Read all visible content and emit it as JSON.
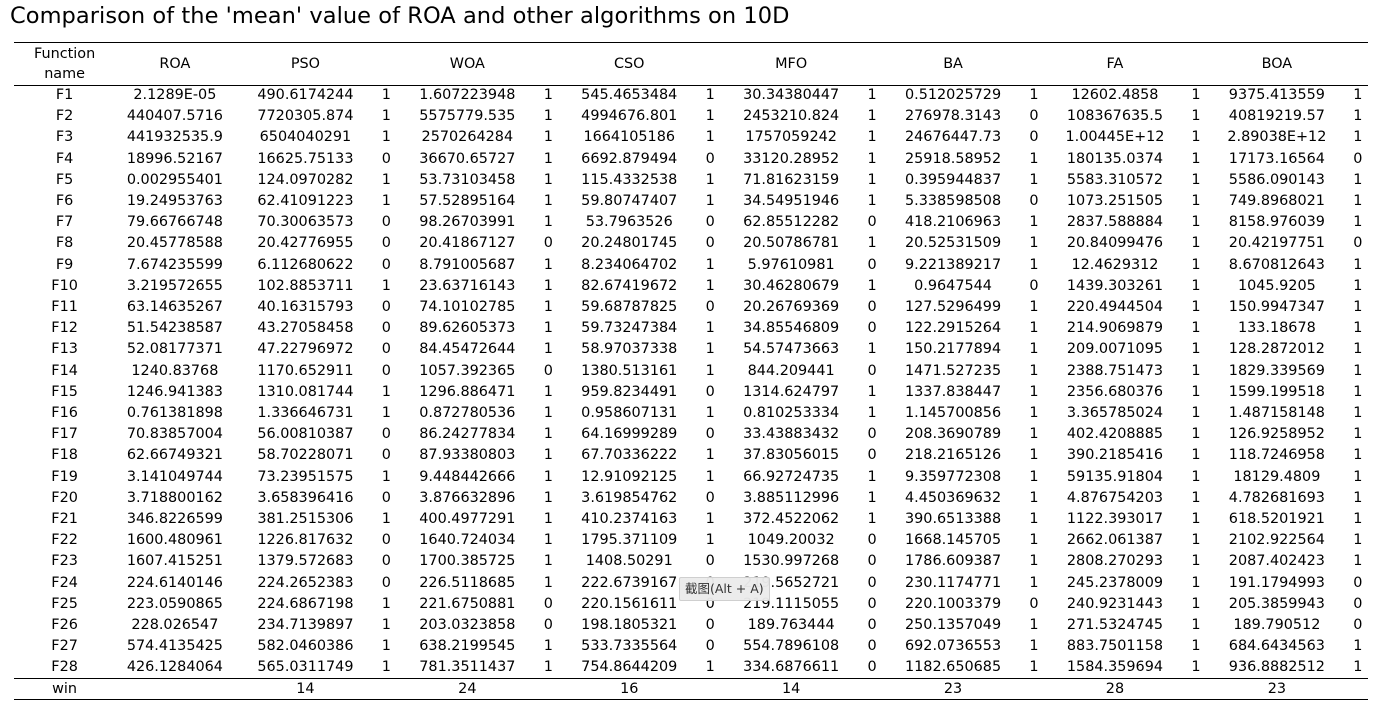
{
  "title": "Comparison of the 'mean' value of ROA and other algorithms on 10D",
  "table": {
    "headers": [
      "Function name",
      "ROA",
      "PSO",
      "",
      "WOA",
      "",
      "CSO",
      "",
      "MFO",
      "",
      "BA",
      "",
      "FA",
      "",
      "BOA",
      ""
    ],
    "rows": [
      [
        "F1",
        "2.1289E-05",
        "490.6174244",
        "1",
        "1.607223948",
        "1",
        "545.4653484",
        "1",
        "30.34380447",
        "1",
        "0.512025729",
        "1",
        "12602.4858",
        "1",
        "9375.413559",
        "1"
      ],
      [
        "F2",
        "440407.5716",
        "7720305.874",
        "1",
        "5575779.535",
        "1",
        "4994676.801",
        "1",
        "2453210.824",
        "1",
        "276978.3143",
        "0",
        "108367635.5",
        "1",
        "40819219.57",
        "1"
      ],
      [
        "F3",
        "441932535.9",
        "6504040291",
        "1",
        "2570264284",
        "1",
        "1664105186",
        "1",
        "1757059242",
        "1",
        "24676447.73",
        "0",
        "1.00445E+12",
        "1",
        "2.89038E+12",
        "1"
      ],
      [
        "F4",
        "18996.52167",
        "16625.75133",
        "0",
        "36670.65727",
        "1",
        "6692.879494",
        "0",
        "33120.28952",
        "1",
        "25918.58952",
        "1",
        "180135.0374",
        "1",
        "17173.16564",
        "0"
      ],
      [
        "F5",
        "0.002955401",
        "124.0970282",
        "1",
        "53.73103458",
        "1",
        "115.4332538",
        "1",
        "71.81623159",
        "1",
        "0.395944837",
        "1",
        "5583.310572",
        "1",
        "5586.090143",
        "1"
      ],
      [
        "F6",
        "19.24953763",
        "62.41091223",
        "1",
        "57.52895164",
        "1",
        "59.80747407",
        "1",
        "34.54951946",
        "1",
        "5.338598508",
        "0",
        "1073.251505",
        "1",
        "749.8968021",
        "1"
      ],
      [
        "F7",
        "79.66766748",
        "70.30063573",
        "0",
        "98.26703991",
        "1",
        "53.7963526",
        "0",
        "62.85512282",
        "0",
        "418.2106963",
        "1",
        "2837.588884",
        "1",
        "8158.976039",
        "1"
      ],
      [
        "F8",
        "20.45778588",
        "20.42776955",
        "0",
        "20.41867127",
        "0",
        "20.24801745",
        "0",
        "20.50786781",
        "1",
        "20.52531509",
        "1",
        "20.84099476",
        "1",
        "20.42197751",
        "0"
      ],
      [
        "F9",
        "7.674235599",
        "6.112680622",
        "0",
        "8.791005687",
        "1",
        "8.234064702",
        "1",
        "5.97610981",
        "0",
        "9.221389217",
        "1",
        "12.4629312",
        "1",
        "8.670812643",
        "1"
      ],
      [
        "F10",
        "3.219572655",
        "102.8853711",
        "1",
        "23.63716143",
        "1",
        "82.67419672",
        "1",
        "30.46280679",
        "1",
        "0.9647544",
        "0",
        "1439.303261",
        "1",
        "1045.9205",
        "1"
      ],
      [
        "F11",
        "63.14635267",
        "40.16315793",
        "0",
        "74.10102785",
        "1",
        "59.68787825",
        "0",
        "20.26769369",
        "0",
        "127.5296499",
        "1",
        "220.4944504",
        "1",
        "150.9947347",
        "1"
      ],
      [
        "F12",
        "51.54238587",
        "43.27058458",
        "0",
        "89.62605373",
        "1",
        "59.73247384",
        "1",
        "34.85546809",
        "0",
        "122.2915264",
        "1",
        "214.9069879",
        "1",
        "133.18678",
        "1"
      ],
      [
        "F13",
        "52.08177371",
        "47.22796972",
        "0",
        "84.45472644",
        "1",
        "58.97037338",
        "1",
        "54.57473663",
        "1",
        "150.2177894",
        "1",
        "209.0071095",
        "1",
        "128.2872012",
        "1"
      ],
      [
        "F14",
        "1240.83768",
        "1170.652911",
        "0",
        "1057.392365",
        "0",
        "1380.513161",
        "1",
        "844.209441",
        "0",
        "1471.527235",
        "1",
        "2388.751473",
        "1",
        "1829.339569",
        "1"
      ],
      [
        "F15",
        "1246.941383",
        "1310.081744",
        "1",
        "1296.886471",
        "1",
        "959.8234491",
        "0",
        "1314.624797",
        "1",
        "1337.838447",
        "1",
        "2356.680376",
        "1",
        "1599.199518",
        "1"
      ],
      [
        "F16",
        "0.761381898",
        "1.336646731",
        "1",
        "0.872780536",
        "1",
        "0.958607131",
        "1",
        "0.810253334",
        "1",
        "1.145700856",
        "1",
        "3.365785024",
        "1",
        "1.487158148",
        "1"
      ],
      [
        "F17",
        "70.83857004",
        "56.00810387",
        "0",
        "86.24277834",
        "1",
        "64.16999289",
        "0",
        "33.43883432",
        "0",
        "208.3690789",
        "1",
        "402.4208885",
        "1",
        "126.9258952",
        "1"
      ],
      [
        "F18",
        "62.66749321",
        "58.70228071",
        "0",
        "87.93380803",
        "1",
        "67.70336222",
        "1",
        "37.83056015",
        "0",
        "218.2165126",
        "1",
        "390.2185416",
        "1",
        "118.7246958",
        "1"
      ],
      [
        "F19",
        "3.141049744",
        "73.23951575",
        "1",
        "9.448442666",
        "1",
        "12.91092125",
        "1",
        "66.92724735",
        "1",
        "9.359772308",
        "1",
        "59135.91804",
        "1",
        "18129.4809",
        "1"
      ],
      [
        "F20",
        "3.718800162",
        "3.658396416",
        "0",
        "3.876632896",
        "1",
        "3.619854762",
        "0",
        "3.885112996",
        "1",
        "4.450369632",
        "1",
        "4.876754203",
        "1",
        "4.782681693",
        "1"
      ],
      [
        "F21",
        "346.8226599",
        "381.2515306",
        "1",
        "400.4977291",
        "1",
        "410.2374163",
        "1",
        "372.4522062",
        "1",
        "390.6513388",
        "1",
        "1122.393017",
        "1",
        "618.5201921",
        "1"
      ],
      [
        "F22",
        "1600.480961",
        "1226.817632",
        "0",
        "1640.724034",
        "1",
        "1795.371109",
        "1",
        "1049.20032",
        "0",
        "1668.145705",
        "1",
        "2662.061387",
        "1",
        "2102.922564",
        "1"
      ],
      [
        "F23",
        "1607.415251",
        "1379.572683",
        "0",
        "1700.385725",
        "1",
        "1408.50291",
        "0",
        "1530.997268",
        "0",
        "1786.609387",
        "1",
        "2808.270293",
        "1",
        "2087.402423",
        "1"
      ],
      [
        "F24",
        "224.6140146",
        "224.2652383",
        "0",
        "226.5118685",
        "1",
        "222.6739167",
        "0",
        "219.5652721",
        "0",
        "230.1174771",
        "1",
        "245.2378009",
        "1",
        "191.1794993",
        "0"
      ],
      [
        "F25",
        "223.0590865",
        "224.6867198",
        "1",
        "221.6750881",
        "0",
        "220.1561611",
        "0",
        "219.1115055",
        "0",
        "220.1003379",
        "0",
        "240.9231443",
        "1",
        "205.3859943",
        "0"
      ],
      [
        "F26",
        "228.026547",
        "234.7139897",
        "1",
        "203.0323858",
        "0",
        "198.1805321",
        "0",
        "189.763444",
        "0",
        "250.1357049",
        "1",
        "271.5324745",
        "1",
        "189.790512",
        "0"
      ],
      [
        "F27",
        "574.4135425",
        "582.0460386",
        "1",
        "638.2199545",
        "1",
        "533.7335564",
        "0",
        "554.7896108",
        "0",
        "692.0736553",
        "1",
        "883.7501158",
        "1",
        "684.6434563",
        "1"
      ],
      [
        "F28",
        "426.1284064",
        "565.0311749",
        "1",
        "781.3511437",
        "1",
        "754.8644209",
        "1",
        "334.6876611",
        "0",
        "1182.650685",
        "1",
        "1584.359694",
        "1",
        "936.8882512",
        "1"
      ]
    ],
    "footer": [
      "win",
      "",
      "14",
      "",
      "24",
      "",
      "16",
      "",
      "14",
      "",
      "23",
      "",
      "28",
      "",
      "23",
      ""
    ]
  },
  "tooltip": "截图(Alt + A)"
}
